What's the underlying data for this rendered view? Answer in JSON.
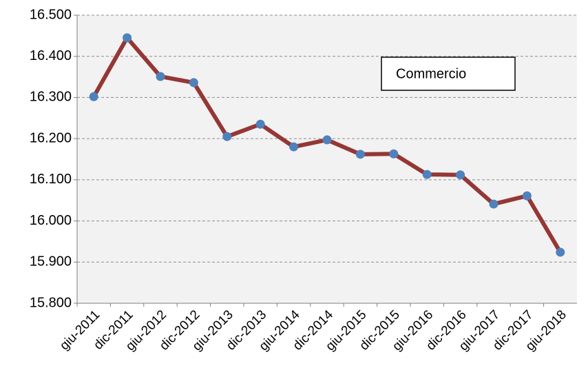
{
  "chart_data": {
    "type": "line",
    "annotation": "Commercio",
    "categories": [
      "giu-2011",
      "dic-2011",
      "giu-2012",
      "dic-2012",
      "giu-2013",
      "dic-2013",
      "giu-2014",
      "dic-2014",
      "giu-2015",
      "dic-2015",
      "giu-2016",
      "dic-2016",
      "giu-2017",
      "dic-2017",
      "giu-2018"
    ],
    "series": [
      {
        "name": "Commercio",
        "color": "#953735",
        "marker_color": "#4f81bd",
        "values": [
          16302,
          16445,
          16351,
          16336,
          16205,
          16235,
          16180,
          16197,
          16162,
          16163,
          16113,
          16112,
          16041,
          16061,
          15924
        ]
      }
    ],
    "ylim": [
      15800,
      16500
    ],
    "yticks": [
      {
        "value": 15800,
        "label": "15.800"
      },
      {
        "value": 15900,
        "label": "15.900"
      },
      {
        "value": 16000,
        "label": "16.000"
      },
      {
        "value": 16100,
        "label": "16.100"
      },
      {
        "value": 16200,
        "label": "16.200"
      },
      {
        "value": 16300,
        "label": "16.300"
      },
      {
        "value": 16400,
        "label": "16.400"
      },
      {
        "value": 16500,
        "label": "16.500"
      }
    ],
    "grid": true
  }
}
